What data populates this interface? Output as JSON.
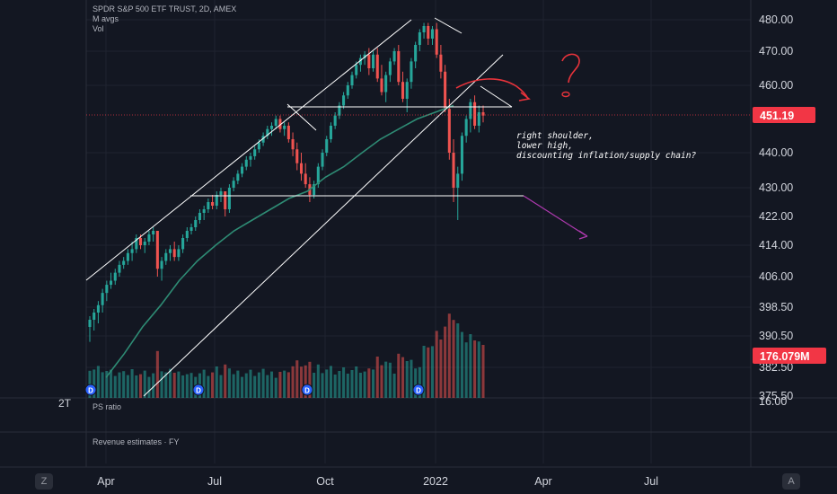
{
  "legend": {
    "symbol_line": "SPDR S&P 500 ETF TRUST, 2D, AMEX",
    "ma_line": "M avgs",
    "vol_line": "Vol"
  },
  "panes": {
    "ps_ratio": "PS ratio",
    "revenue": "Revenue estimates · FY",
    "ps_axis_value": "16.00",
    "left_scale_label": "2T"
  },
  "buttons": {
    "left_corner": "Z",
    "right_corner": "A"
  },
  "annotation": {
    "line1": "right shoulder,",
    "line2": "lower high,",
    "line3": "discounting inflation/supply chain?"
  },
  "colors": {
    "background": "#131722",
    "up": "#26a69a",
    "down": "#ef5350",
    "ma": "#2e8b74",
    "price_tag": "#f23645",
    "drawing": "#ffffff",
    "arrow": "#b03ab0",
    "question": "#e8333b"
  },
  "chart_data": {
    "type": "candlestick",
    "title": "SPDR S&P 500 ETF TRUST, 2D, AMEX",
    "ylim": [
      375.5,
      482
    ],
    "y_ticks": [
      "480.00",
      "470.00",
      "460.00",
      "451.19",
      "440.00",
      "430.00",
      "422.00",
      "414.00",
      "406.00",
      "398.50",
      "390.50",
      "382.50",
      "375.50"
    ],
    "x_ticks": [
      "Apr",
      "Jul",
      "Oct",
      "2022",
      "Apr",
      "Jul"
    ],
    "last_price": "451.19",
    "last_volume": "176.079M",
    "price_scale": "log",
    "series": [
      {
        "name": "M avgs",
        "values": [
          380,
          386,
          393,
          399,
          405,
          410,
          414,
          418,
          421,
          424,
          427,
          429,
          433,
          436,
          440,
          444,
          447,
          450,
          452,
          454
        ]
      }
    ],
    "candles": [
      {
        "o": 393,
        "h": 396,
        "l": 389,
        "c": 395
      },
      {
        "o": 395,
        "h": 398,
        "l": 392,
        "c": 397
      },
      {
        "o": 397,
        "h": 400,
        "l": 394,
        "c": 399
      },
      {
        "o": 399,
        "h": 403,
        "l": 397,
        "c": 402
      },
      {
        "o": 402,
        "h": 405,
        "l": 400,
        "c": 404
      },
      {
        "o": 404,
        "h": 407,
        "l": 403,
        "c": 405
      },
      {
        "o": 405,
        "h": 408,
        "l": 404,
        "c": 407
      },
      {
        "o": 407,
        "h": 410,
        "l": 406,
        "c": 409
      },
      {
        "o": 409,
        "h": 411,
        "l": 408,
        "c": 410
      },
      {
        "o": 410,
        "h": 413,
        "l": 409,
        "c": 412
      },
      {
        "o": 412,
        "h": 415,
        "l": 410,
        "c": 413
      },
      {
        "o": 413,
        "h": 417,
        "l": 412,
        "c": 416
      },
      {
        "o": 416,
        "h": 417,
        "l": 413,
        "c": 414
      },
      {
        "o": 414,
        "h": 416,
        "l": 412,
        "c": 415
      },
      {
        "o": 415,
        "h": 418,
        "l": 414,
        "c": 417
      },
      {
        "o": 417,
        "h": 419,
        "l": 415,
        "c": 418
      },
      {
        "o": 418,
        "h": 418,
        "l": 406,
        "c": 408
      },
      {
        "o": 408,
        "h": 411,
        "l": 405,
        "c": 410
      },
      {
        "o": 410,
        "h": 413,
        "l": 409,
        "c": 412
      },
      {
        "o": 412,
        "h": 414,
        "l": 410,
        "c": 413
      },
      {
        "o": 413,
        "h": 415,
        "l": 410,
        "c": 411
      },
      {
        "o": 411,
        "h": 414,
        "l": 410,
        "c": 413
      },
      {
        "o": 413,
        "h": 417,
        "l": 412,
        "c": 416
      },
      {
        "o": 416,
        "h": 419,
        "l": 415,
        "c": 418
      },
      {
        "o": 418,
        "h": 420,
        "l": 417,
        "c": 419
      },
      {
        "o": 419,
        "h": 422,
        "l": 418,
        "c": 421
      },
      {
        "o": 421,
        "h": 424,
        "l": 420,
        "c": 423
      },
      {
        "o": 423,
        "h": 425,
        "l": 421,
        "c": 424
      },
      {
        "o": 424,
        "h": 427,
        "l": 423,
        "c": 426
      },
      {
        "o": 426,
        "h": 428,
        "l": 424,
        "c": 425
      },
      {
        "o": 425,
        "h": 429,
        "l": 424,
        "c": 428
      },
      {
        "o": 428,
        "h": 430,
        "l": 426,
        "c": 429
      },
      {
        "o": 429,
        "h": 429,
        "l": 422,
        "c": 424
      },
      {
        "o": 424,
        "h": 431,
        "l": 423,
        "c": 430
      },
      {
        "o": 430,
        "h": 433,
        "l": 429,
        "c": 432
      },
      {
        "o": 432,
        "h": 435,
        "l": 431,
        "c": 434
      },
      {
        "o": 434,
        "h": 437,
        "l": 433,
        "c": 436
      },
      {
        "o": 436,
        "h": 439,
        "l": 435,
        "c": 438
      },
      {
        "o": 438,
        "h": 440,
        "l": 436,
        "c": 439
      },
      {
        "o": 439,
        "h": 442,
        "l": 438,
        "c": 441
      },
      {
        "o": 441,
        "h": 444,
        "l": 440,
        "c": 443
      },
      {
        "o": 443,
        "h": 446,
        "l": 442,
        "c": 445
      },
      {
        "o": 445,
        "h": 448,
        "l": 444,
        "c": 447
      },
      {
        "o": 447,
        "h": 449,
        "l": 445,
        "c": 448
      },
      {
        "o": 448,
        "h": 451,
        "l": 447,
        "c": 450
      },
      {
        "o": 450,
        "h": 451,
        "l": 446,
        "c": 447
      },
      {
        "o": 447,
        "h": 449,
        "l": 445,
        "c": 448
      },
      {
        "o": 448,
        "h": 449,
        "l": 443,
        "c": 444
      },
      {
        "o": 444,
        "h": 446,
        "l": 439,
        "c": 441
      },
      {
        "o": 441,
        "h": 443,
        "l": 435,
        "c": 437
      },
      {
        "o": 437,
        "h": 440,
        "l": 432,
        "c": 434
      },
      {
        "o": 434,
        "h": 437,
        "l": 430,
        "c": 431
      },
      {
        "o": 431,
        "h": 433,
        "l": 426,
        "c": 428
      },
      {
        "o": 428,
        "h": 432,
        "l": 427,
        "c": 431
      },
      {
        "o": 431,
        "h": 437,
        "l": 430,
        "c": 436
      },
      {
        "o": 436,
        "h": 441,
        "l": 435,
        "c": 440
      },
      {
        "o": 440,
        "h": 445,
        "l": 439,
        "c": 444
      },
      {
        "o": 444,
        "h": 449,
        "l": 443,
        "c": 448
      },
      {
        "o": 448,
        "h": 452,
        "l": 447,
        "c": 451
      },
      {
        "o": 451,
        "h": 455,
        "l": 450,
        "c": 454
      },
      {
        "o": 454,
        "h": 458,
        "l": 453,
        "c": 457
      },
      {
        "o": 457,
        "h": 461,
        "l": 456,
        "c": 460
      },
      {
        "o": 460,
        "h": 464,
        "l": 459,
        "c": 463
      },
      {
        "o": 463,
        "h": 467,
        "l": 462,
        "c": 466
      },
      {
        "o": 466,
        "h": 469,
        "l": 464,
        "c": 468
      },
      {
        "o": 468,
        "h": 470,
        "l": 466,
        "c": 469
      },
      {
        "o": 469,
        "h": 471,
        "l": 463,
        "c": 465
      },
      {
        "o": 465,
        "h": 470,
        "l": 464,
        "c": 469
      },
      {
        "o": 469,
        "h": 471,
        "l": 461,
        "c": 462
      },
      {
        "o": 462,
        "h": 466,
        "l": 457,
        "c": 458
      },
      {
        "o": 458,
        "h": 464,
        "l": 455,
        "c": 463
      },
      {
        "o": 463,
        "h": 468,
        "l": 461,
        "c": 467
      },
      {
        "o": 467,
        "h": 471,
        "l": 466,
        "c": 470
      },
      {
        "o": 470,
        "h": 472,
        "l": 460,
        "c": 461
      },
      {
        "o": 461,
        "h": 464,
        "l": 455,
        "c": 456
      },
      {
        "o": 456,
        "h": 462,
        "l": 452,
        "c": 461
      },
      {
        "o": 461,
        "h": 468,
        "l": 459,
        "c": 467
      },
      {
        "o": 467,
        "h": 473,
        "l": 465,
        "c": 472
      },
      {
        "o": 472,
        "h": 477,
        "l": 470,
        "c": 476
      },
      {
        "o": 476,
        "h": 479,
        "l": 474,
        "c": 478
      },
      {
        "o": 478,
        "h": 479,
        "l": 472,
        "c": 474
      },
      {
        "o": 474,
        "h": 478,
        "l": 472,
        "c": 477
      },
      {
        "o": 477,
        "h": 479,
        "l": 468,
        "c": 469
      },
      {
        "o": 469,
        "h": 472,
        "l": 462,
        "c": 464
      },
      {
        "o": 464,
        "h": 466,
        "l": 452,
        "c": 453
      },
      {
        "o": 453,
        "h": 456,
        "l": 438,
        "c": 440
      },
      {
        "o": 440,
        "h": 444,
        "l": 426,
        "c": 430
      },
      {
        "o": 430,
        "h": 436,
        "l": 421,
        "c": 434
      },
      {
        "o": 434,
        "h": 446,
        "l": 432,
        "c": 445
      },
      {
        "o": 445,
        "h": 451,
        "l": 443,
        "c": 450
      },
      {
        "o": 450,
        "h": 456,
        "l": 446,
        "c": 455
      },
      {
        "o": 455,
        "h": 457,
        "l": 447,
        "c": 448
      },
      {
        "o": 448,
        "h": 454,
        "l": 446,
        "c": 452
      },
      {
        "o": 452,
        "h": 454,
        "l": 449,
        "c": 451
      }
    ]
  }
}
